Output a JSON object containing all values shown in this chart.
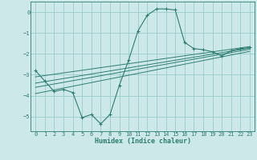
{
  "xlabel": "Humidex (Indice chaleur)",
  "bg_color": "#cce8e8",
  "grid_color": "#99cccc",
  "line_color": "#2e7d72",
  "xlim": [
    -0.5,
    23.5
  ],
  "ylim": [
    -5.7,
    0.5
  ],
  "yticks": [
    0,
    -1,
    -2,
    -3,
    -4,
    -5
  ],
  "xticks": [
    0,
    1,
    2,
    3,
    4,
    5,
    6,
    7,
    8,
    9,
    10,
    11,
    12,
    13,
    14,
    15,
    16,
    17,
    18,
    19,
    20,
    21,
    22,
    23
  ],
  "curve_x": [
    0,
    1,
    2,
    3,
    4,
    5,
    6,
    7,
    8,
    9,
    10,
    11,
    12,
    13,
    14,
    15,
    16,
    17,
    18,
    19,
    20,
    21,
    22,
    23
  ],
  "curve_y": [
    -2.8,
    -3.3,
    -3.8,
    -3.7,
    -3.85,
    -5.05,
    -4.9,
    -5.35,
    -4.9,
    -3.5,
    -2.3,
    -0.9,
    -0.15,
    0.15,
    0.15,
    0.1,
    -1.45,
    -1.75,
    -1.8,
    -1.9,
    -2.1,
    -1.85,
    -1.75,
    -1.7
  ],
  "linear_lines": [
    {
      "x": [
        0,
        23
      ],
      "y": [
        -3.1,
        -1.65
      ]
    },
    {
      "x": [
        0,
        23
      ],
      "y": [
        -3.4,
        -1.72
      ]
    },
    {
      "x": [
        0,
        23
      ],
      "y": [
        -3.6,
        -1.78
      ]
    },
    {
      "x": [
        0,
        23
      ],
      "y": [
        -3.9,
        -1.88
      ]
    }
  ]
}
